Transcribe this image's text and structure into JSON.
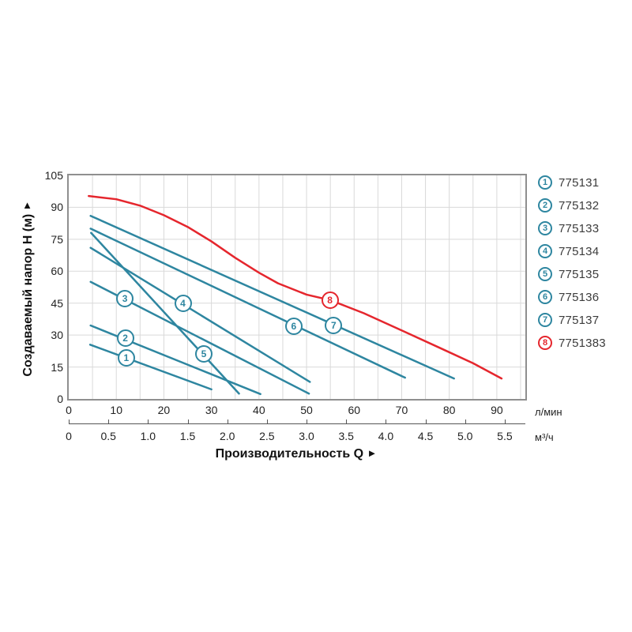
{
  "page": {
    "background": "#ffffff"
  },
  "colors": {
    "teal": "#2e86a0",
    "red": "#e5262d",
    "grid": "#d9d9d9",
    "plot_border": "#8f8f8f",
    "axis_line": "#555555",
    "text": "#222222"
  },
  "y_axis": {
    "title": "Создаваемый напор H (м)",
    "arrow": "▲",
    "ticks": [
      0,
      15,
      30,
      45,
      60,
      75,
      90,
      105
    ]
  },
  "x_axis": {
    "title": "Производительность Q",
    "arrow": "►",
    "primary": {
      "unit": "л/мин",
      "ticks": [
        0,
        10,
        20,
        30,
        40,
        50,
        60,
        70,
        80,
        90
      ]
    },
    "secondary": {
      "unit": "м³/ч",
      "ticks": [
        "0",
        "0.5",
        "1.0",
        "1.5",
        "2.0",
        "2.5",
        "3.0",
        "3.5",
        "4.0",
        "4.5",
        "5.0",
        "5.5"
      ]
    }
  },
  "legend": {
    "items": [
      {
        "num": "1",
        "code": "775131",
        "color": "#2e86a0"
      },
      {
        "num": "2",
        "code": "775132",
        "color": "#2e86a0"
      },
      {
        "num": "3",
        "code": "775133",
        "color": "#2e86a0"
      },
      {
        "num": "4",
        "code": "775134",
        "color": "#2e86a0"
      },
      {
        "num": "5",
        "code": "775135",
        "color": "#2e86a0"
      },
      {
        "num": "6",
        "code": "775136",
        "color": "#2e86a0"
      },
      {
        "num": "7",
        "code": "775137",
        "color": "#2e86a0"
      },
      {
        "num": "8",
        "code": "7751383",
        "color": "#e5262d"
      }
    ]
  },
  "chart_data": {
    "type": "line",
    "title": "",
    "xlabel": "Производительность Q",
    "ylabel": "Создаваемый напор H (м)",
    "x_unit_primary": "л/мин",
    "x_unit_secondary": "м³/ч",
    "xlim": [
      0,
      96
    ],
    "ylim": [
      0,
      105
    ],
    "grid": {
      "on": true,
      "x_step": 5,
      "y_step": 15
    },
    "legend_position": "right-outside",
    "series": [
      {
        "name": "775131",
        "marker": "1",
        "color": "#2e86a0",
        "marker_at": [
          12.1,
          19.3
        ],
        "points": [
          [
            4.5,
            25.5
          ],
          [
            30.0,
            4.5
          ]
        ]
      },
      {
        "name": "775132",
        "marker": "2",
        "color": "#2e86a0",
        "marker_at": [
          11.9,
          28.6
        ],
        "points": [
          [
            4.6,
            34.5
          ],
          [
            40.3,
            2.3
          ]
        ]
      },
      {
        "name": "775133",
        "marker": "3",
        "color": "#2e86a0",
        "marker_at": [
          11.8,
          47.0
        ],
        "points": [
          [
            4.6,
            55.0
          ],
          [
            50.5,
            2.5
          ]
        ]
      },
      {
        "name": "775134",
        "marker": "4",
        "color": "#2e86a0",
        "marker_at": [
          24.0,
          44.9
        ],
        "points": [
          [
            4.6,
            71.0
          ],
          [
            50.7,
            8.0
          ]
        ]
      },
      {
        "name": "775135",
        "marker": "5",
        "color": "#2e86a0",
        "marker_at": [
          28.4,
          21.2
        ],
        "points": [
          [
            4.7,
            78.0
          ],
          [
            35.8,
            2.5
          ]
        ]
      },
      {
        "name": "775136",
        "marker": "6",
        "color": "#2e86a0",
        "marker_at": [
          47.3,
          34.1
        ],
        "points": [
          [
            4.6,
            80.0
          ],
          [
            70.7,
            10.0
          ]
        ]
      },
      {
        "name": "775137",
        "marker": "7",
        "color": "#2e86a0",
        "marker_at": [
          55.7,
          34.5
        ],
        "points": [
          [
            4.6,
            86.0
          ],
          [
            81.0,
            9.6
          ]
        ]
      },
      {
        "name": "7751383",
        "marker": "8",
        "color": "#e5262d",
        "marker_at": [
          54.9,
          46.4
        ],
        "points": [
          [
            4.2,
            95.3
          ],
          [
            10,
            93.8
          ],
          [
            15,
            90.8
          ],
          [
            20,
            86.3
          ],
          [
            25,
            80.8
          ],
          [
            30,
            74.0
          ],
          [
            35,
            66.3
          ],
          [
            40,
            59.3
          ],
          [
            44,
            54.3
          ],
          [
            50,
            49.0
          ],
          [
            55,
            46.4
          ],
          [
            62,
            40.3
          ],
          [
            70,
            32.2
          ],
          [
            78,
            24.0
          ],
          [
            85,
            16.8
          ],
          [
            91,
            9.6
          ]
        ]
      }
    ]
  }
}
